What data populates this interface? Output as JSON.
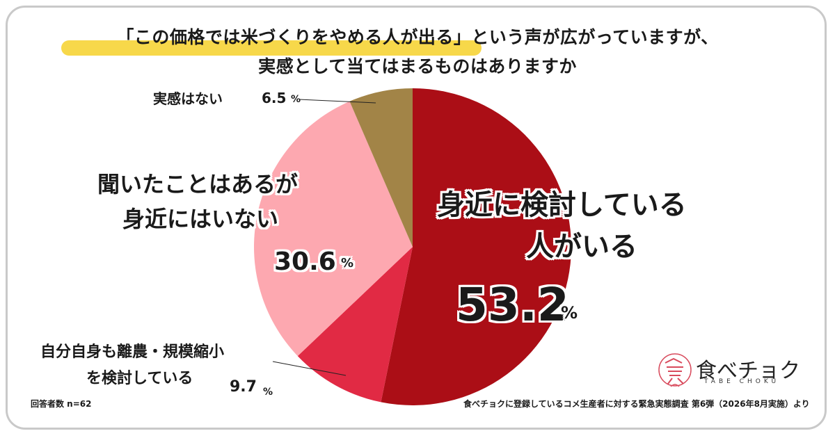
{
  "title": {
    "line1": "「この価格では米づくりをやめる人が出る」という声が広がっていますが、",
    "line2": "実感として当てはまるものはありますか"
  },
  "chart_data": {
    "type": "pie",
    "slices": [
      {
        "label_line1": "身近に検討している",
        "label_line2": "人がいる",
        "value": 53.2,
        "value_text": "53.2",
        "color": "#ab0e16"
      },
      {
        "label_line1": "自分自身も離農・規模縮小",
        "label_line2": "を検討している",
        "value": 9.7,
        "value_text": "9.7",
        "color": "#e12a44"
      },
      {
        "label_line1": "聞いたことはあるが",
        "label_line2": "身近にはいない",
        "value": 30.6,
        "value_text": "30.6",
        "color": "#fda8b0"
      },
      {
        "label_line1": "実感はない",
        "label_line2": "",
        "value": 6.5,
        "value_text": "6.5",
        "color": "#a28447"
      }
    ],
    "unit": "%"
  },
  "footer": {
    "respondents": "回答者数 n=62",
    "source": "食べチョクに登録しているコメ生産者に対する緊急実態調査 第6弾（2026年8月実施）より"
  },
  "brand": {
    "name": "食べチョク",
    "sub": "TABE CHOKU"
  }
}
